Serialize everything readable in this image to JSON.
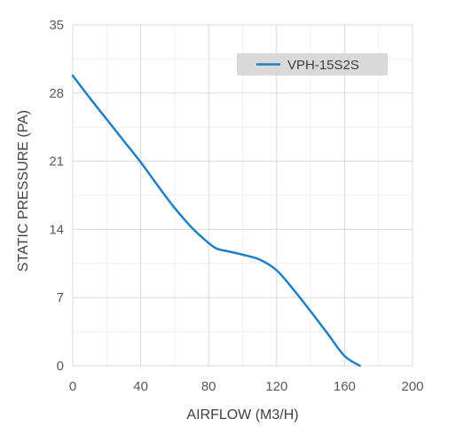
{
  "chart_data": {
    "type": "line",
    "xlabel": "AIRFLOW (M3/H)",
    "ylabel": "STATIC PRESSURE (PA)",
    "xlim": [
      0,
      200
    ],
    "ylim": [
      0,
      35
    ],
    "xticks": [
      "0",
      "40",
      "80",
      "120",
      "160",
      "200"
    ],
    "yticks": [
      "0",
      "7",
      "14",
      "21",
      "28",
      "35"
    ],
    "grid": true,
    "legend_position": "top-right",
    "series": [
      {
        "name": "VPH-15S2S",
        "color": "#1f7fc4",
        "x": [
          0,
          10,
          20,
          30,
          40,
          50,
          60,
          70,
          80,
          85,
          90,
          100,
          110,
          120,
          130,
          140,
          150,
          160,
          169
        ],
        "y": [
          29.8,
          27.5,
          25.3,
          23.1,
          20.9,
          18.5,
          16.2,
          14.2,
          12.6,
          12.0,
          11.8,
          11.4,
          10.9,
          9.8,
          7.8,
          5.6,
          3.3,
          1.0,
          0
        ]
      }
    ]
  }
}
